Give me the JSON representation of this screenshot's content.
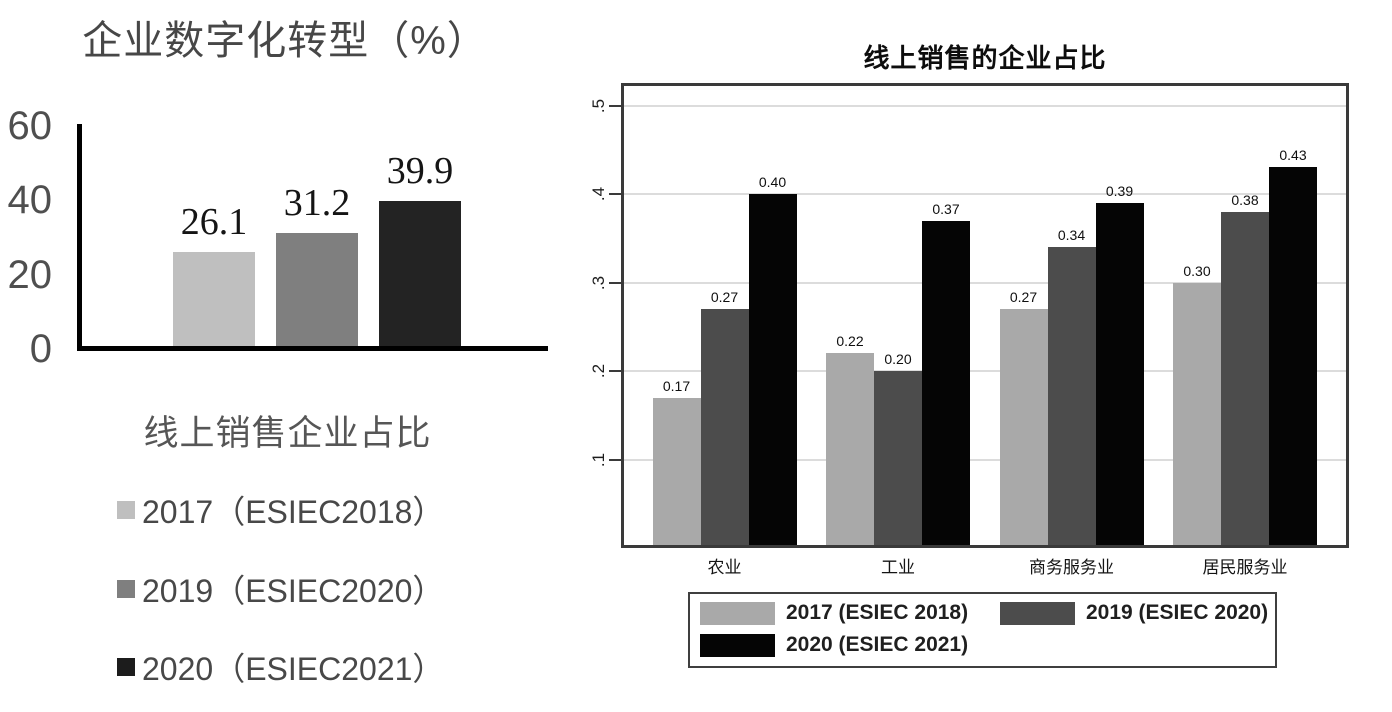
{
  "chart_data": [
    {
      "type": "bar",
      "title": "企业数字化转型（%）",
      "values": [
        26.1,
        31.2,
        39.9
      ],
      "value_labels": [
        "26.1",
        "31.2",
        "39.9"
      ],
      "bar_colors": [
        "#bfbfbf",
        "#7f7f7f",
        "#232323"
      ],
      "y_ticks": [
        0,
        20,
        40,
        60
      ],
      "ylim": [
        0,
        60
      ],
      "grid": false,
      "legend_title": "线上销售企业占比",
      "legend_position": "below",
      "legend": [
        {
          "label": "2017（ESIEC2018）",
          "color": "#bfbfbf"
        },
        {
          "label": "2019（ESIEC2020）",
          "color": "#7f7f7f"
        },
        {
          "label": "2020（ESIEC2021）",
          "color": "#1c1c1c"
        }
      ]
    },
    {
      "type": "grouped-bar",
      "title": "线上销售的企业占比",
      "categories": [
        "农业",
        "工业",
        "商务服务业",
        "居民服务业"
      ],
      "series": [
        {
          "name": "2017 (ESIEC 2018)",
          "color": "#a9a9a9",
          "values": [
            0.17,
            0.22,
            0.27,
            0.3
          ]
        },
        {
          "name": "2019 (ESIEC 2020)",
          "color": "#4c4c4c",
          "values": [
            0.27,
            0.2,
            0.34,
            0.38
          ]
        },
        {
          "name": "2020 (ESIEC 2021)",
          "color": "#050505",
          "values": [
            0.4,
            0.37,
            0.39,
            0.43
          ]
        }
      ],
      "value_labels": [
        [
          "0.17",
          "0.22",
          "0.27",
          "0.30"
        ],
        [
          "0.27",
          "0.20",
          "0.34",
          "0.38"
        ],
        [
          "0.40",
          "0.37",
          "0.39",
          "0.43"
        ]
      ],
      "y_tick_labels": [
        ".1",
        ".2",
        ".3",
        ".4",
        ".5"
      ],
      "y_tick_values": [
        0.1,
        0.2,
        0.3,
        0.4,
        0.5
      ],
      "ylim": [
        0,
        0.525
      ],
      "grid": true,
      "legend_position": "below-boxed"
    }
  ]
}
